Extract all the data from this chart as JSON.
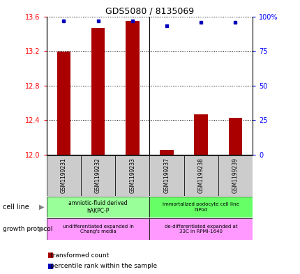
{
  "title": "GDS5080 / 8135069",
  "samples": [
    "GSM1199231",
    "GSM1199232",
    "GSM1199233",
    "GSM1199237",
    "GSM1199238",
    "GSM1199239"
  ],
  "red_values": [
    13.19,
    13.47,
    13.55,
    12.06,
    12.47,
    12.43
  ],
  "blue_values": [
    97,
    97,
    97,
    93,
    96,
    96
  ],
  "ymin": 12.0,
  "ymax": 13.6,
  "y2min": 0,
  "y2max": 100,
  "yticks": [
    12.0,
    12.4,
    12.8,
    13.2,
    13.6
  ],
  "y2ticks": [
    0,
    25,
    50,
    75,
    100
  ],
  "y2tick_labels": [
    "0",
    "25",
    "50",
    "75",
    "100%"
  ],
  "cell_line_left": "amniotic-fluid derived\nhAKPC-P",
  "cell_line_right": "immortalized podocyte cell line\nhIPod",
  "growth_left": "undifferentiated expanded in\nChang's media",
  "growth_right": "de-differentiated expanded at\n33C in RPMI-1640",
  "cell_line_color_left": "#99ff99",
  "cell_line_color_right": "#66ff66",
  "growth_color": "#ff99ff",
  "sample_bg_color": "#cccccc",
  "bar_color": "#aa0000",
  "dot_color": "#0000bb",
  "legend_red": "transformed count",
  "legend_blue": "percentile rank within the sample",
  "bar_width": 0.4
}
